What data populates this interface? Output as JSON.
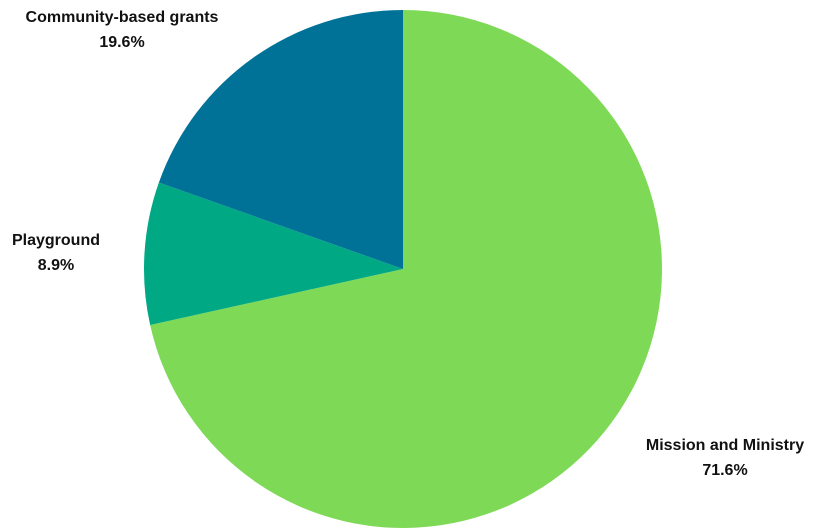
{
  "chart_data": {
    "type": "pie",
    "title": "",
    "slices": [
      {
        "label": "Mission and Ministry",
        "value": 71.6,
        "display": "71.6%",
        "color": "#7ED957"
      },
      {
        "label": "Playground",
        "value": 8.9,
        "display": "8.9%",
        "color": "#00A884"
      },
      {
        "label": "Community-based grants",
        "value": 19.6,
        "display": "19.6%",
        "color": "#007297"
      }
    ],
    "start_angle_deg": 0,
    "direction": "clockwise",
    "legend": "none"
  }
}
